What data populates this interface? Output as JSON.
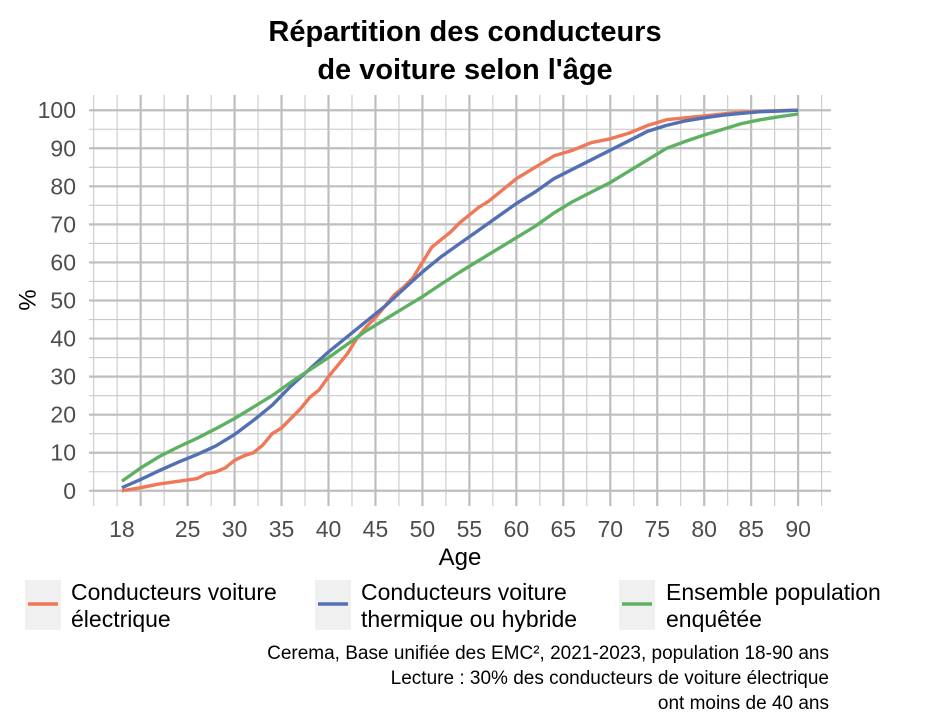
{
  "chart_data": {
    "type": "line",
    "title": [
      "Répartition des conducteurs",
      "de voiture selon l'âge"
    ],
    "xlabel": "Age",
    "ylabel": "%",
    "xlim": [
      14.5,
      93.5
    ],
    "ylim": [
      -4,
      104
    ],
    "xticks": [
      18,
      25,
      30,
      35,
      40,
      45,
      50,
      55,
      60,
      65,
      70,
      75,
      80,
      85,
      90
    ],
    "yticks": [
      0,
      10,
      20,
      30,
      40,
      50,
      60,
      70,
      80,
      90,
      100
    ],
    "grid": true,
    "legend_position": "bottom",
    "series": [
      {
        "name": "Conducteurs voiture électrique",
        "label_lines": [
          "Conducteurs voiture",
          "électrique"
        ],
        "color": "#ef7858",
        "x": [
          18,
          20,
          22,
          24,
          26,
          27,
          28,
          29,
          30,
          31,
          32,
          33,
          34,
          35,
          36,
          37,
          38,
          39,
          40,
          41,
          42,
          43,
          44,
          45,
          46,
          47,
          48,
          49,
          50,
          51,
          52,
          53,
          54,
          55,
          56,
          57,
          58,
          59,
          60,
          62,
          64,
          66,
          68,
          70,
          72,
          74,
          76,
          78,
          80,
          82,
          84,
          86,
          88,
          90
        ],
        "y": [
          0,
          0.8,
          1.8,
          2.5,
          3.2,
          4.5,
          5,
          6,
          8,
          9.2,
          10,
          12,
          15,
          16.5,
          19,
          21.5,
          24.5,
          26.5,
          30,
          33,
          36,
          40,
          43,
          45.5,
          48.5,
          51.5,
          53.5,
          56,
          60,
          64,
          66,
          68,
          70.5,
          72.5,
          74.5,
          76,
          78,
          80,
          82,
          85,
          88,
          89.5,
          91.5,
          92.5,
          94,
          96,
          97.5,
          98,
          98.5,
          99,
          99.5,
          99.7,
          99.9,
          100
        ]
      },
      {
        "name": "Conducteurs voiture thermique ou hybride",
        "label_lines": [
          "Conducteurs voiture",
          "thermique ou hybride"
        ],
        "color": "#5470b4",
        "x": [
          18,
          20,
          22,
          24,
          26,
          28,
          30,
          32,
          34,
          36,
          38,
          40,
          42,
          44,
          46,
          48,
          50,
          52,
          54,
          56,
          58,
          60,
          62,
          64,
          66,
          68,
          70,
          72,
          74,
          76,
          78,
          80,
          82,
          84,
          86,
          88,
          90
        ],
        "y": [
          0.8,
          3,
          5.3,
          7.5,
          9.5,
          11.8,
          14.8,
          18.5,
          22.5,
          27.5,
          32,
          36.5,
          40.5,
          44.5,
          48.5,
          53,
          57.5,
          61.5,
          65,
          68.5,
          72,
          75.5,
          78.5,
          82,
          84.5,
          87,
          89.5,
          92,
          94.5,
          96,
          97.2,
          98,
          98.7,
          99.2,
          99.6,
          99.8,
          100
        ]
      },
      {
        "name": "Ensemble population enquêtée",
        "label_lines": [
          "Ensemble population",
          "enquêtée"
        ],
        "color": "#5fb162",
        "x": [
          18,
          20,
          22,
          24,
          26,
          28,
          30,
          32,
          34,
          36,
          38,
          40,
          42,
          44,
          46,
          48,
          50,
          52,
          54,
          56,
          58,
          60,
          62,
          64,
          66,
          68,
          70,
          72,
          74,
          76,
          78,
          80,
          82,
          84,
          86,
          88,
          90
        ],
        "y": [
          2.5,
          6,
          9,
          11.5,
          13.8,
          16.3,
          19,
          22,
          25,
          28.5,
          31.8,
          35,
          38.5,
          42,
          45,
          48,
          51,
          54.3,
          57.5,
          60.5,
          63.5,
          66.5,
          69.5,
          73,
          76,
          78.5,
          81,
          84,
          87,
          90,
          91.8,
          93.5,
          95,
          96.5,
          97.5,
          98.3,
          99
        ]
      }
    ],
    "caption": [
      "Cerema, Base unifiée des EMC², 2021-2023, population 18-90 ans",
      "Lecture : 30% des conducteurs de voiture électrique",
      "ont moins de 40 ans"
    ]
  },
  "style": {
    "grid_major": "#bebebe",
    "grid_minor": "#c8c8c8",
    "legend_key_bg": "#f0f0f0"
  }
}
